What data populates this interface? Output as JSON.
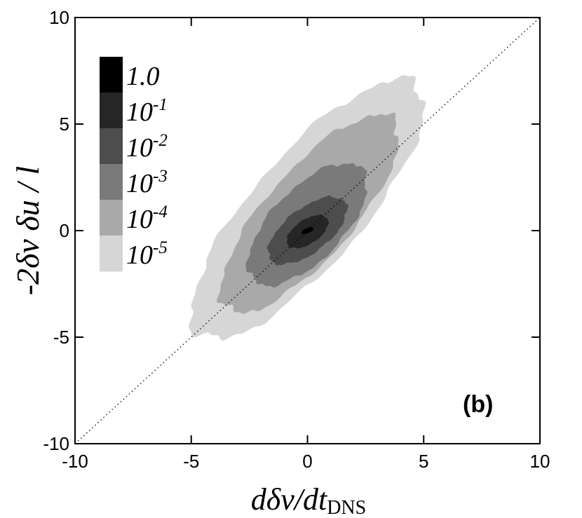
{
  "chart_data": {
    "type": "heatmap",
    "title": "",
    "panel_label": "(b)",
    "xlabel": {
      "main": "dδv/dt",
      "sub": "DNS"
    },
    "ylabel": "-2δv δu / l",
    "xlim": [
      -10,
      10
    ],
    "ylim": [
      -10,
      10
    ],
    "xticks": [
      -10,
      -5,
      0,
      5,
      10
    ],
    "yticks": [
      -10,
      -5,
      0,
      5,
      10
    ],
    "x_tick_labels": [
      "-10",
      "-5",
      "0",
      "5",
      "10"
    ],
    "y_tick_labels": [
      "-10",
      "-5",
      "0",
      "5",
      "10"
    ],
    "reference_line": {
      "style": "dotted",
      "from": [
        -10,
        -10
      ],
      "to": [
        10,
        10
      ]
    },
    "legend": {
      "position": "top-left",
      "levels": [
        {
          "base": "1.0",
          "exp": "",
          "color": "#000000"
        },
        {
          "base": "10",
          "exp": "-1",
          "color": "#262626"
        },
        {
          "base": "10",
          "exp": "-2",
          "color": "#4d4d4d"
        },
        {
          "base": "10",
          "exp": "-3",
          "color": "#7a7a7a"
        },
        {
          "base": "10",
          "exp": "-4",
          "color": "#a9a9a9"
        },
        {
          "base": "10",
          "exp": "-5",
          "color": "#d6d6d6"
        }
      ]
    },
    "contours": [
      {
        "level": "1e-5",
        "color": "#d6d6d6",
        "center": [
          0.0,
          1.0
        ],
        "a": 7.5,
        "b": 2.45,
        "angle_deg": 52
      },
      {
        "level": "1e-4",
        "color": "#a9a9a9",
        "center": [
          0.1,
          0.8
        ],
        "a": 5.7,
        "b": 1.95,
        "angle_deg": 52
      },
      {
        "level": "1e-3",
        "color": "#7a7a7a",
        "center": [
          0.0,
          0.3
        ],
        "a": 3.5,
        "b": 1.6,
        "angle_deg": 50
      },
      {
        "level": "1e-2",
        "color": "#4d4d4d",
        "center": [
          0.0,
          0.0
        ],
        "a": 2.1,
        "b": 1.0,
        "angle_deg": 42
      },
      {
        "level": "1e-1",
        "color": "#262626",
        "center": [
          0.0,
          -0.05
        ],
        "a": 1.05,
        "b": 0.55,
        "angle_deg": 38
      },
      {
        "level": "1.0",
        "color": "#000000",
        "center": [
          0.0,
          0.0
        ],
        "a": 0.28,
        "b": 0.12,
        "angle_deg": 25
      }
    ]
  }
}
